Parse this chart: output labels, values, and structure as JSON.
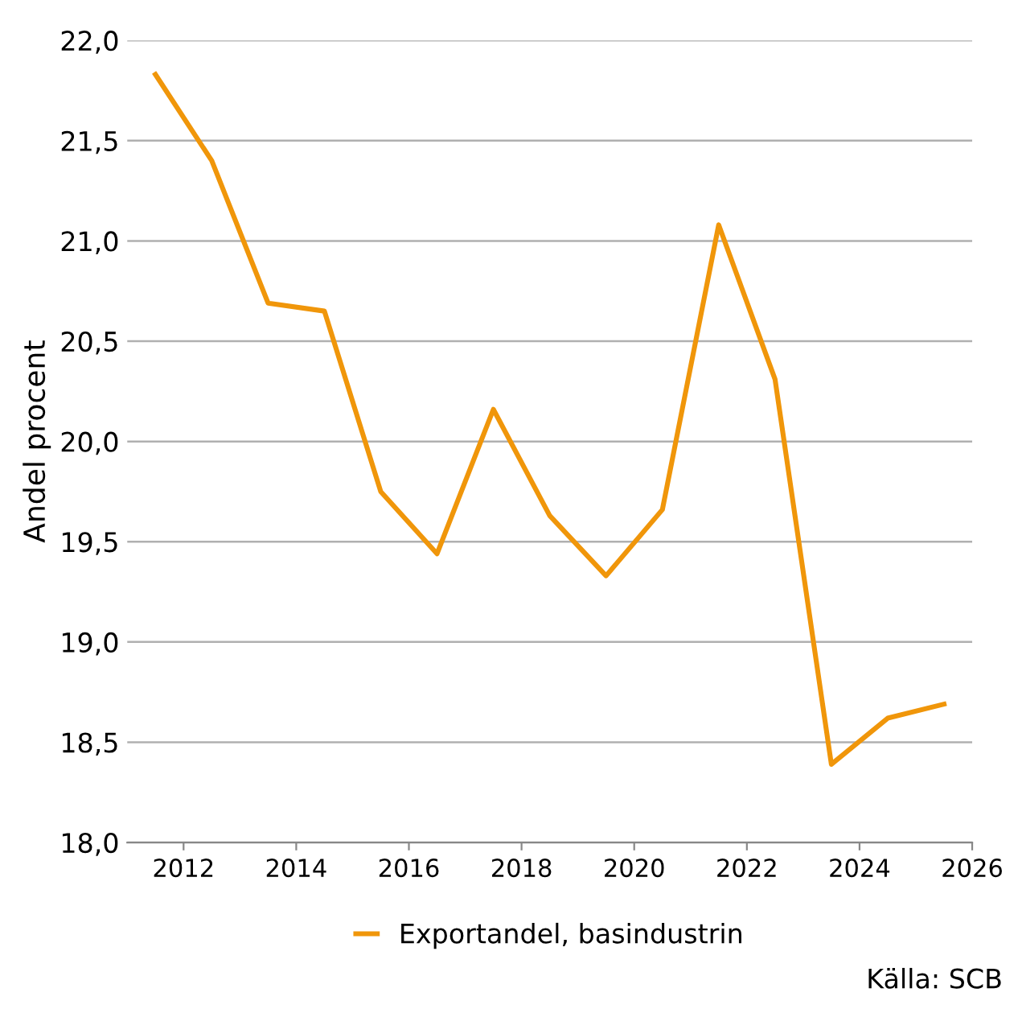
{
  "chart_data": {
    "type": "line",
    "ylabel": "Andel procent",
    "x": [
      2011.5,
      2012.5,
      2013.5,
      2014.5,
      2015.5,
      2016.5,
      2017.5,
      2018.5,
      2019.5,
      2020.5,
      2021.5,
      2022.5,
      2023.5,
      2024.5,
      2025.5
    ],
    "series": [
      {
        "name": "Exportandel, basindustrin",
        "color": "#f0960a",
        "values": [
          21.83,
          21.4,
          20.69,
          20.65,
          19.75,
          19.44,
          20.16,
          19.63,
          19.33,
          19.66,
          21.08,
          20.31,
          18.39,
          18.62,
          18.69
        ]
      }
    ],
    "xlim": [
      2011,
      2026
    ],
    "xticks": [
      2012,
      2014,
      2016,
      2018,
      2020,
      2022,
      2024,
      2026
    ],
    "ylim": [
      18,
      22
    ],
    "yticks": [
      {
        "value": 18,
        "label": "18,0"
      },
      {
        "value": 18.5,
        "label": "18,5"
      },
      {
        "value": 19,
        "label": "19,0"
      },
      {
        "value": 19.5,
        "label": "19,5"
      },
      {
        "value": 20,
        "label": "20,0"
      },
      {
        "value": 20.5,
        "label": "20,5"
      },
      {
        "value": 21,
        "label": "21,0"
      },
      {
        "value": 21.5,
        "label": "21,5"
      },
      {
        "value": 22,
        "label": "22,0"
      }
    ],
    "grid": "y",
    "legend": "bottom",
    "marker": "none",
    "line_style": "solid",
    "annotations": [
      "Källa: SCB"
    ]
  }
}
